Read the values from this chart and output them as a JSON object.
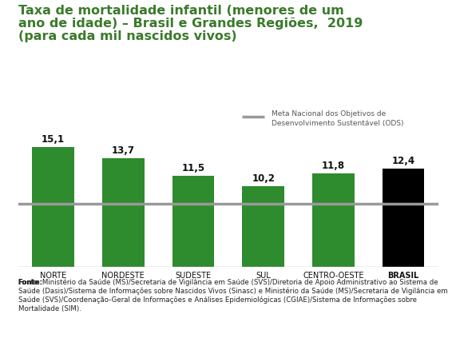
{
  "title_line1": "Taxa de mortalidade infantil (menores de um",
  "title_line2": "ano de idade) – Brasil e Grandes Regiões,  2019",
  "title_line3": "(para cada mil nascidos vivos)",
  "title_color": "#3a7a2a",
  "categories": [
    "NORTE",
    "NORDESTE",
    "SUDESTE",
    "SUL",
    "CENTRO-OESTE",
    "BRASIL"
  ],
  "values": [
    15.1,
    13.7,
    11.5,
    10.2,
    11.8,
    12.4
  ],
  "bar_colors": [
    "#2e8b2e",
    "#2e8b2e",
    "#2e8b2e",
    "#2e8b2e",
    "#2e8b2e",
    "#000000"
  ],
  "reference_line_y": 8.0,
  "reference_line_color": "#999999",
  "reference_label_line1": "Meta Nacional dos Objetivos de",
  "reference_label_line2": "Desenvolvimento Sustentável (ODS)",
  "fonte_bold": "Fonte:",
  "fonte_text": " Ministério da Saúde (MS)/Secretaria de Vigilância em Saúde (SVS)/Diretoria de Apoio Administrativo ao Sistema de Saúde (Dasis)/Sistema de Informações sobre Nascidos Vivos (Sinasc) e Ministério da Saúde (MS)/Secretaria de Vigilância em Saúde (SVS)/Coordenação-Geral de Informações e Análises Epidemiológicas (CGIAE)/Sistema de Informações sobre Mortalidade (SIM).",
  "ylim": [
    0,
    17
  ],
  "background_color": "#ffffff"
}
